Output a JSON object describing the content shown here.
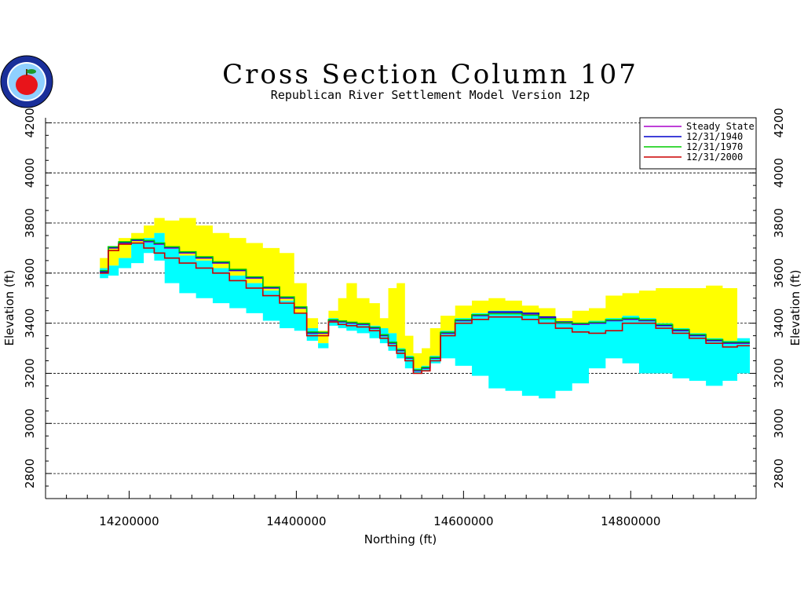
{
  "chart_data": {
    "type": "line",
    "title": "Cross Section Column 107",
    "subtitle": "Republican River Settlement Model Version 12p",
    "xlabel": "Northing (ft)",
    "ylabel": "Elevation (ft)",
    "xlim": [
      14100000,
      14950000
    ],
    "ylim": [
      2700,
      4220
    ],
    "xticks": [
      "14200000",
      "14400000",
      "14600000",
      "14800000"
    ],
    "yticks": [
      "2800",
      "3000",
      "3200",
      "3400",
      "3600",
      "3800",
      "4000",
      "4200"
    ],
    "grid": "horizontal dashed",
    "legend_position": "top-right",
    "x": [
      14170000,
      14180000,
      14195000,
      14210000,
      14225000,
      14235000,
      14250000,
      14270000,
      14290000,
      14310000,
      14330000,
      14350000,
      14370000,
      14390000,
      14405000,
      14420000,
      14432000,
      14445000,
      14455000,
      14465000,
      14480000,
      14495000,
      14505000,
      14515000,
      14525000,
      14535000,
      14545000,
      14555000,
      14565000,
      14580000,
      14600000,
      14620000,
      14640000,
      14660000,
      14680000,
      14700000,
      14720000,
      14740000,
      14760000,
      14780000,
      14800000,
      14820000,
      14840000,
      14860000,
      14880000,
      14900000,
      14920000,
      14935000
    ],
    "layers": [
      {
        "name": "land_surface",
        "color": "#ffff00",
        "top": [
          3660,
          3700,
          3740,
          3760,
          3790,
          3820,
          3810,
          3820,
          3790,
          3760,
          3740,
          3720,
          3700,
          3680,
          3560,
          3420,
          3370,
          3450,
          3500,
          3560,
          3500,
          3480,
          3420,
          3540,
          3560,
          3350,
          3280,
          3300,
          3380,
          3430,
          3470,
          3490,
          3500,
          3490,
          3470,
          3460,
          3420,
          3450,
          3460,
          3510,
          3520,
          3530,
          3540,
          3540,
          3540,
          3550,
          3540,
          3340
        ]
      },
      {
        "name": "aquifer",
        "color": "#00ffff",
        "top": [
          3620,
          3630,
          3660,
          3720,
          3740,
          3760,
          3700,
          3670,
          3650,
          3620,
          3590,
          3560,
          3530,
          3490,
          3440,
          3380,
          3320,
          3420,
          3410,
          3400,
          3400,
          3390,
          3380,
          3360,
          3300,
          3270,
          3220,
          3230,
          3270,
          3370,
          3420,
          3440,
          3450,
          3450,
          3440,
          3420,
          3400,
          3400,
          3410,
          3420,
          3430,
          3420,
          3400,
          3380,
          3360,
          3340,
          3330,
          3340
        ],
        "bottom": [
          3580,
          3590,
          3620,
          3640,
          3680,
          3650,
          3560,
          3520,
          3500,
          3480,
          3460,
          3440,
          3410,
          3380,
          3370,
          3330,
          3300,
          3390,
          3380,
          3370,
          3360,
          3340,
          3320,
          3290,
          3260,
          3220,
          3200,
          3210,
          3240,
          3260,
          3230,
          3190,
          3140,
          3130,
          3110,
          3100,
          3130,
          3160,
          3220,
          3260,
          3240,
          3200,
          3200,
          3180,
          3170,
          3150,
          3170,
          3200
        ]
      }
    ],
    "series": [
      {
        "name": "Steady State",
        "color": "#aa00cc",
        "values": [
          3600,
          3700,
          3720,
          3730,
          3725,
          3715,
          3700,
          3680,
          3660,
          3640,
          3610,
          3580,
          3540,
          3500,
          3460,
          3360,
          3360,
          3410,
          3405,
          3400,
          3395,
          3380,
          3350,
          3320,
          3290,
          3260,
          3210,
          3220,
          3260,
          3360,
          3410,
          3430,
          3440,
          3440,
          3435,
          3420,
          3400,
          3395,
          3400,
          3410,
          3415,
          3410,
          3390,
          3370,
          3350,
          3330,
          3320,
          3320
        ]
      },
      {
        "name": "12/31/1940",
        "color": "#0000cc",
        "values": [
          3605,
          3702,
          3722,
          3732,
          3728,
          3718,
          3703,
          3683,
          3662,
          3642,
          3612,
          3582,
          3542,
          3502,
          3462,
          3362,
          3362,
          3412,
          3407,
          3402,
          3397,
          3382,
          3352,
          3322,
          3292,
          3262,
          3212,
          3222,
          3262,
          3362,
          3412,
          3432,
          3445,
          3445,
          3440,
          3425,
          3405,
          3398,
          3402,
          3412,
          3418,
          3412,
          3392,
          3372,
          3352,
          3332,
          3322,
          3322
        ]
      },
      {
        "name": "12/31/1970",
        "color": "#00cc00",
        "values": [
          3610,
          3705,
          3725,
          3735,
          3730,
          3720,
          3705,
          3685,
          3665,
          3645,
          3615,
          3585,
          3545,
          3505,
          3465,
          3365,
          3364,
          3414,
          3409,
          3404,
          3399,
          3384,
          3354,
          3324,
          3294,
          3264,
          3214,
          3224,
          3264,
          3364,
          3414,
          3434,
          3438,
          3438,
          3432,
          3418,
          3402,
          3400,
          3404,
          3414,
          3420,
          3414,
          3395,
          3375,
          3355,
          3335,
          3325,
          3325
        ]
      },
      {
        "name": "12/31/2000",
        "color": "#cc0000",
        "values": [
          3600,
          3690,
          3715,
          3720,
          3700,
          3680,
          3660,
          3640,
          3620,
          3600,
          3570,
          3540,
          3510,
          3480,
          3440,
          3350,
          3350,
          3405,
          3395,
          3390,
          3385,
          3370,
          3340,
          3310,
          3280,
          3250,
          3200,
          3210,
          3250,
          3350,
          3400,
          3415,
          3425,
          3425,
          3415,
          3400,
          3380,
          3365,
          3360,
          3370,
          3400,
          3400,
          3380,
          3360,
          3340,
          3320,
          3305,
          3310
        ]
      }
    ]
  }
}
